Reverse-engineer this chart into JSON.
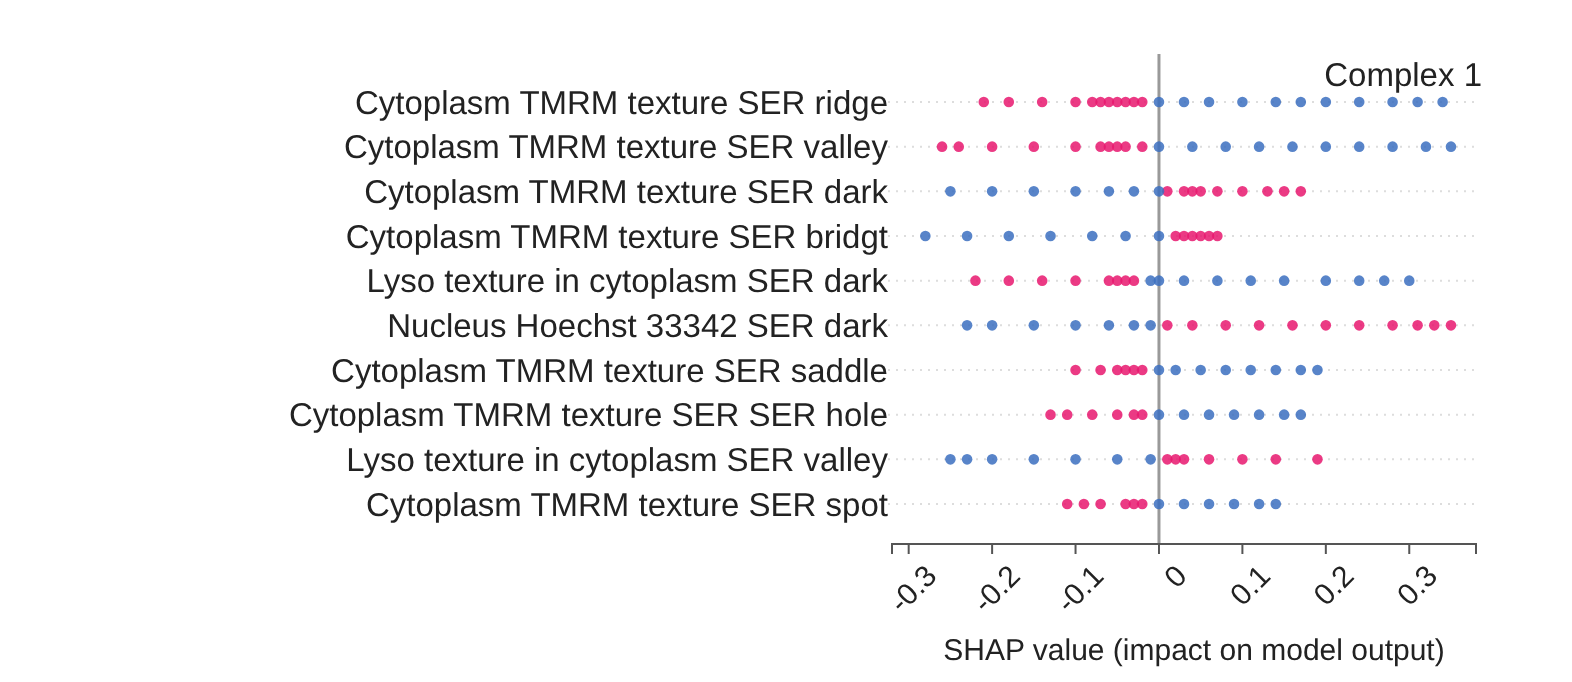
{
  "chart_data": {
    "type": "scatter",
    "orientation": "horizontal",
    "title": "Complex 1",
    "xlabel": "SHAP value (impact on model output)",
    "categories": [
      "Cytoplasm TMRM texture SER ridge",
      "Cytoplasm TMRM texture SER valley",
      "Cytoplasm TMRM texture SER dark",
      "Cytoplasm TMRM texture SER bridgt",
      "Lyso texture in cytoplasm SER dark",
      "Nucleus Hoechst 33342 SER dark",
      "Cytoplasm TMRM texture SER saddle",
      "Cytoplasm TMRM texture SER SER hole",
      "Lyso texture in cytoplasm SER valley",
      "Cytoplasm TMRM texture SER spot"
    ],
    "xlim": [
      -0.32,
      0.38
    ],
    "xticks": [
      -0.3,
      -0.2,
      -0.1,
      0,
      0.1,
      0.2,
      0.3
    ],
    "grid": "y",
    "marker": "circle",
    "ref_lines": [
      {
        "axis": "x",
        "value": 0,
        "color": "#999999"
      }
    ],
    "series": [
      {
        "color": "#e8186e",
        "x": [
          "Cytoplasm TMRM texture SER ridge",
          "Cytoplasm TMRM texture SER ridge",
          "Cytoplasm TMRM texture SER ridge",
          "Cytoplasm TMRM texture SER ridge",
          "Cytoplasm TMRM texture SER ridge",
          "Cytoplasm TMRM texture SER ridge",
          "Cytoplasm TMRM texture SER ridge",
          "Cytoplasm TMRM texture SER ridge",
          "Cytoplasm TMRM texture SER ridge",
          "Cytoplasm TMRM texture SER ridge",
          "Cytoplasm TMRM texture SER ridge",
          "Cytoplasm TMRM texture SER valley",
          "Cytoplasm TMRM texture SER valley",
          "Cytoplasm TMRM texture SER valley",
          "Cytoplasm TMRM texture SER valley",
          "Cytoplasm TMRM texture SER valley",
          "Cytoplasm TMRM texture SER valley",
          "Cytoplasm TMRM texture SER valley",
          "Cytoplasm TMRM texture SER valley",
          "Cytoplasm TMRM texture SER valley",
          "Cytoplasm TMRM texture SER valley",
          "Cytoplasm TMRM texture SER dark",
          "Cytoplasm TMRM texture SER dark",
          "Cytoplasm TMRM texture SER dark",
          "Cytoplasm TMRM texture SER dark",
          "Cytoplasm TMRM texture SER dark",
          "Cytoplasm TMRM texture SER dark",
          "Cytoplasm TMRM texture SER dark",
          "Cytoplasm TMRM texture SER dark",
          "Cytoplasm TMRM texture SER dark",
          "Cytoplasm TMRM texture SER bridgt",
          "Cytoplasm TMRM texture SER bridgt",
          "Cytoplasm TMRM texture SER bridgt",
          "Cytoplasm TMRM texture SER bridgt",
          "Cytoplasm TMRM texture SER bridgt",
          "Cytoplasm TMRM texture SER bridgt",
          "Lyso texture in cytoplasm SER dark",
          "Lyso texture in cytoplasm SER dark",
          "Lyso texture in cytoplasm SER dark",
          "Lyso texture in cytoplasm SER dark",
          "Lyso texture in cytoplasm SER dark",
          "Lyso texture in cytoplasm SER dark",
          "Lyso texture in cytoplasm SER dark",
          "Lyso texture in cytoplasm SER dark",
          "Nucleus Hoechst 33342 SER dark",
          "Nucleus Hoechst 33342 SER dark",
          "Nucleus Hoechst 33342 SER dark",
          "Nucleus Hoechst 33342 SER dark",
          "Nucleus Hoechst 33342 SER dark",
          "Nucleus Hoechst 33342 SER dark",
          "Nucleus Hoechst 33342 SER dark",
          "Nucleus Hoechst 33342 SER dark",
          "Nucleus Hoechst 33342 SER dark",
          "Nucleus Hoechst 33342 SER dark",
          "Nucleus Hoechst 33342 SER dark",
          "Cytoplasm TMRM texture SER saddle",
          "Cytoplasm TMRM texture SER saddle",
          "Cytoplasm TMRM texture SER saddle",
          "Cytoplasm TMRM texture SER saddle",
          "Cytoplasm TMRM texture SER saddle",
          "Cytoplasm TMRM texture SER saddle",
          "Cytoplasm TMRM texture SER SER hole",
          "Cytoplasm TMRM texture SER SER hole",
          "Cytoplasm TMRM texture SER SER hole",
          "Cytoplasm TMRM texture SER SER hole",
          "Cytoplasm TMRM texture SER SER hole",
          "Cytoplasm TMRM texture SER SER hole",
          "Lyso texture in cytoplasm SER valley",
          "Lyso texture in cytoplasm SER valley",
          "Lyso texture in cytoplasm SER valley",
          "Lyso texture in cytoplasm SER valley",
          "Lyso texture in cytoplasm SER valley",
          "Lyso texture in cytoplasm SER valley",
          "Lyso texture in cytoplasm SER valley",
          "Cytoplasm TMRM texture SER spot",
          "Cytoplasm TMRM texture SER spot",
          "Cytoplasm TMRM texture SER spot",
          "Cytoplasm TMRM texture SER spot",
          "Cytoplasm TMRM texture SER spot",
          "Cytoplasm TMRM texture SER spot"
        ],
        "values": [
          -0.21,
          -0.18,
          -0.14,
          -0.1,
          -0.08,
          -0.07,
          -0.06,
          -0.05,
          -0.04,
          -0.03,
          -0.02,
          -0.26,
          -0.24,
          -0.2,
          -0.15,
          -0.1,
          -0.07,
          -0.06,
          -0.05,
          -0.04,
          -0.02,
          0.01,
          0.03,
          0.04,
          0.05,
          0.07,
          0.1,
          0.13,
          0.15,
          0.17,
          0.02,
          0.03,
          0.04,
          0.05,
          0.06,
          0.07,
          -0.22,
          -0.18,
          -0.14,
          -0.1,
          -0.06,
          -0.05,
          -0.04,
          -0.03,
          0.01,
          0.04,
          0.08,
          0.12,
          0.16,
          0.2,
          0.24,
          0.28,
          0.31,
          0.33,
          0.35,
          -0.1,
          -0.07,
          -0.05,
          -0.04,
          -0.03,
          -0.02,
          -0.13,
          -0.11,
          -0.08,
          -0.05,
          -0.03,
          -0.02,
          0.01,
          0.02,
          0.03,
          0.06,
          0.1,
          0.14,
          0.19,
          -0.11,
          -0.09,
          -0.07,
          -0.04,
          -0.03,
          -0.02
        ]
      },
      {
        "color": "#3b6fc0",
        "x": [
          "Cytoplasm TMRM texture SER ridge",
          "Cytoplasm TMRM texture SER ridge",
          "Cytoplasm TMRM texture SER ridge",
          "Cytoplasm TMRM texture SER ridge",
          "Cytoplasm TMRM texture SER ridge",
          "Cytoplasm TMRM texture SER ridge",
          "Cytoplasm TMRM texture SER ridge",
          "Cytoplasm TMRM texture SER ridge",
          "Cytoplasm TMRM texture SER ridge",
          "Cytoplasm TMRM texture SER ridge",
          "Cytoplasm TMRM texture SER ridge",
          "Cytoplasm TMRM texture SER valley",
          "Cytoplasm TMRM texture SER valley",
          "Cytoplasm TMRM texture SER valley",
          "Cytoplasm TMRM texture SER valley",
          "Cytoplasm TMRM texture SER valley",
          "Cytoplasm TMRM texture SER valley",
          "Cytoplasm TMRM texture SER valley",
          "Cytoplasm TMRM texture SER valley",
          "Cytoplasm TMRM texture SER valley",
          "Cytoplasm TMRM texture SER valley",
          "Cytoplasm TMRM texture SER dark",
          "Cytoplasm TMRM texture SER dark",
          "Cytoplasm TMRM texture SER dark",
          "Cytoplasm TMRM texture SER dark",
          "Cytoplasm TMRM texture SER dark",
          "Cytoplasm TMRM texture SER dark",
          "Cytoplasm TMRM texture SER dark",
          "Cytoplasm TMRM texture SER bridgt",
          "Cytoplasm TMRM texture SER bridgt",
          "Cytoplasm TMRM texture SER bridgt",
          "Cytoplasm TMRM texture SER bridgt",
          "Cytoplasm TMRM texture SER bridgt",
          "Cytoplasm TMRM texture SER bridgt",
          "Cytoplasm TMRM texture SER bridgt",
          "Lyso texture in cytoplasm SER dark",
          "Lyso texture in cytoplasm SER dark",
          "Lyso texture in cytoplasm SER dark",
          "Lyso texture in cytoplasm SER dark",
          "Lyso texture in cytoplasm SER dark",
          "Lyso texture in cytoplasm SER dark",
          "Lyso texture in cytoplasm SER dark",
          "Lyso texture in cytoplasm SER dark",
          "Lyso texture in cytoplasm SER dark",
          "Lyso texture in cytoplasm SER dark",
          "Nucleus Hoechst 33342 SER dark",
          "Nucleus Hoechst 33342 SER dark",
          "Nucleus Hoechst 33342 SER dark",
          "Nucleus Hoechst 33342 SER dark",
          "Nucleus Hoechst 33342 SER dark",
          "Nucleus Hoechst 33342 SER dark",
          "Nucleus Hoechst 33342 SER dark",
          "Cytoplasm TMRM texture SER saddle",
          "Cytoplasm TMRM texture SER saddle",
          "Cytoplasm TMRM texture SER saddle",
          "Cytoplasm TMRM texture SER saddle",
          "Cytoplasm TMRM texture SER saddle",
          "Cytoplasm TMRM texture SER saddle",
          "Cytoplasm TMRM texture SER saddle",
          "Cytoplasm TMRM texture SER saddle",
          "Cytoplasm TMRM texture SER SER hole",
          "Cytoplasm TMRM texture SER SER hole",
          "Cytoplasm TMRM texture SER SER hole",
          "Cytoplasm TMRM texture SER SER hole",
          "Cytoplasm TMRM texture SER SER hole",
          "Cytoplasm TMRM texture SER SER hole",
          "Cytoplasm TMRM texture SER SER hole",
          "Lyso texture in cytoplasm SER valley",
          "Lyso texture in cytoplasm SER valley",
          "Lyso texture in cytoplasm SER valley",
          "Lyso texture in cytoplasm SER valley",
          "Lyso texture in cytoplasm SER valley",
          "Lyso texture in cytoplasm SER valley",
          "Lyso texture in cytoplasm SER valley",
          "Cytoplasm TMRM texture SER spot",
          "Cytoplasm TMRM texture SER spot",
          "Cytoplasm TMRM texture SER spot",
          "Cytoplasm TMRM texture SER spot",
          "Cytoplasm TMRM texture SER spot",
          "Cytoplasm TMRM texture SER spot"
        ],
        "values": [
          0,
          0.03,
          0.06,
          0.1,
          0.14,
          0.17,
          0.2,
          0.24,
          0.28,
          0.31,
          0.34,
          0,
          0.04,
          0.08,
          0.12,
          0.16,
          0.2,
          0.24,
          0.28,
          0.32,
          0.35,
          -0.25,
          -0.2,
          -0.15,
          -0.1,
          -0.06,
          -0.03,
          0,
          -0.28,
          -0.23,
          -0.18,
          -0.13,
          -0.08,
          -0.04,
          0,
          -0.01,
          0,
          0.03,
          0.07,
          0.11,
          0.15,
          0.2,
          0.24,
          0.27,
          0.3,
          -0.23,
          -0.2,
          -0.15,
          -0.1,
          -0.06,
          -0.03,
          -0.01,
          0,
          0.02,
          0.05,
          0.08,
          0.11,
          0.14,
          0.17,
          0.19,
          0,
          0.03,
          0.06,
          0.09,
          0.12,
          0.15,
          0.17,
          -0.25,
          -0.23,
          -0.2,
          -0.15,
          -0.1,
          -0.05,
          -0.01,
          0,
          0.03,
          0.06,
          0.09,
          0.12,
          0.14
        ]
      }
    ]
  }
}
